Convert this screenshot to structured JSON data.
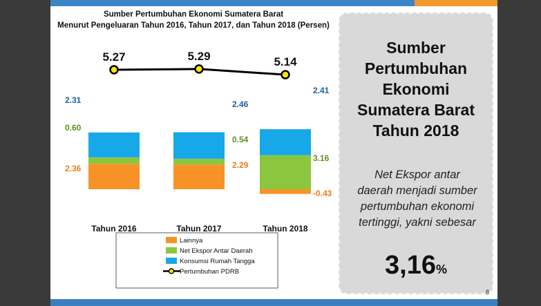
{
  "chart_data": {
    "type": "bar",
    "title": "Sumber Pertumbuhan Ekonomi Sumatera Barat",
    "subtitle": "Menurut Pengeluaran Tahun 2016, Tahun 2017, dan Tahun 2018 (Persen)",
    "categories": [
      "Tahun 2016",
      "Tahun 2017",
      "Tahun 2018"
    ],
    "series": [
      {
        "name": "Lainnya",
        "type": "bar",
        "values": [
          2.36,
          2.29,
          -0.43
        ],
        "color": "#f79226",
        "label_color": "#f07d1a"
      },
      {
        "name": "Net Ekspor Antar Daerah",
        "type": "bar",
        "values": [
          0.6,
          0.54,
          3.16
        ],
        "color": "#8cc63e",
        "label_color": "#5f8f1e"
      },
      {
        "name": "Konsumsi Rumah Tangga",
        "type": "bar",
        "values": [
          2.31,
          2.46,
          2.41
        ],
        "color": "#16a8e8",
        "label_color": "#1f5fa0"
      },
      {
        "name": "Pertumbuhan PDRB",
        "type": "line",
        "values": [
          5.27,
          5.29,
          5.14
        ],
        "color": "#000000"
      }
    ],
    "data_labels": {
      "lainnya": [
        "2.36",
        "2.29",
        "-0.43"
      ],
      "net_ekspor": [
        "0.60",
        "0.54",
        "3.16"
      ],
      "konsumsi": [
        "2.31",
        "2.46",
        "2.41"
      ],
      "pdrb": [
        "5.27",
        "5.29",
        "5.14"
      ]
    },
    "legend_placement": "bottom",
    "grid": false
  },
  "panel": {
    "title": "Sumber\nPertumbuhan\nEkonomi\nSumatera Barat\nTahun 2018",
    "body": "Net Ekspor antar\ndaerah menjadi sumber\npertumbuhan ekonomi\ntertinggi, yakni sebesar",
    "value": "3,16",
    "value_unit": "%"
  },
  "page_number": "8"
}
